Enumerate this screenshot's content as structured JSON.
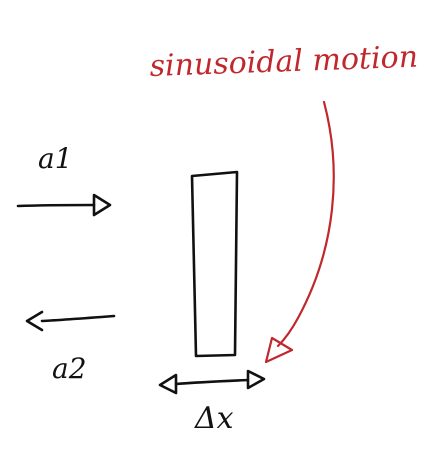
{
  "annotation": {
    "text": "sinusoidal motion",
    "color": "#c0282d"
  },
  "labels": {
    "incoming_wave": "a1",
    "reflected_wave": "a2",
    "displacement": "Δx"
  },
  "colors": {
    "ink": "#111111",
    "background": "#ffffff"
  }
}
